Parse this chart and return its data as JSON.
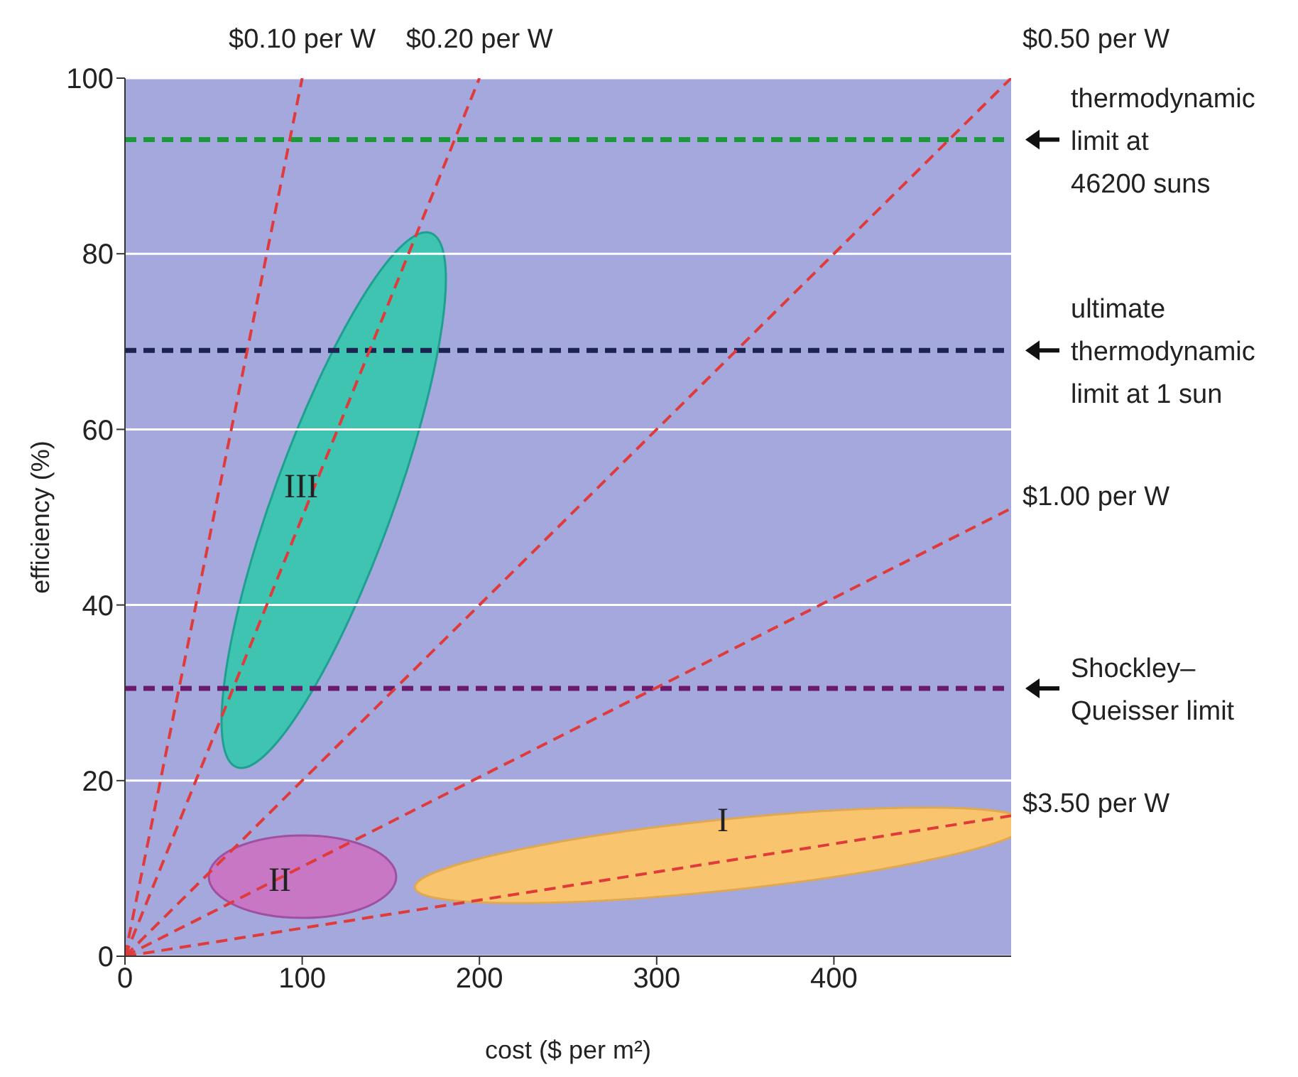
{
  "chart_data": {
    "type": "line",
    "xlabel": "cost ($ per m²)",
    "ylabel": "efficiency (%)",
    "xlim": [
      0,
      500
    ],
    "xticks": [
      0,
      100,
      200,
      300,
      400
    ],
    "ylim": [
      0,
      100
    ],
    "yticks": [
      0,
      20,
      40,
      60,
      80,
      100
    ],
    "grid": "y",
    "line_style": "dashed",
    "marker": "none",
    "series": [
      {
        "name": "$0.10 per W",
        "color": "#e03a3a",
        "x": [
          0,
          100
        ],
        "values": [
          0,
          100
        ]
      },
      {
        "name": "$0.20 per W",
        "color": "#e03a3a",
        "x": [
          0,
          200
        ],
        "values": [
          0,
          100
        ]
      },
      {
        "name": "$0.50 per W",
        "color": "#e03a3a",
        "x": [
          0,
          500
        ],
        "values": [
          0,
          100
        ]
      },
      {
        "name": "$1.00 per W",
        "color": "#e03a3a",
        "x": [
          0,
          500
        ],
        "values": [
          0,
          51
        ]
      },
      {
        "name": "$3.50 per W",
        "color": "#e03a3a",
        "x": [
          0,
          500
        ],
        "values": [
          0,
          16
        ]
      }
    ],
    "ref_lines": [
      {
        "axis": "y",
        "value": 93,
        "label": "thermodynamic\nlimit at\n46200 suns",
        "color": "#1a9a3a",
        "line_style": "dashed"
      },
      {
        "axis": "y",
        "value": 69,
        "label": "ultimate\nthermodynamic\nlimit at 1 sun",
        "color": "#1c2350",
        "line_style": "dashed"
      },
      {
        "axis": "y",
        "value": 30.5,
        "label": "Shockley–\nQueisser limit",
        "color": "#6a1a6a",
        "line_style": "dashed"
      }
    ],
    "annotations": [
      "III",
      "II",
      "I"
    ]
  }
}
